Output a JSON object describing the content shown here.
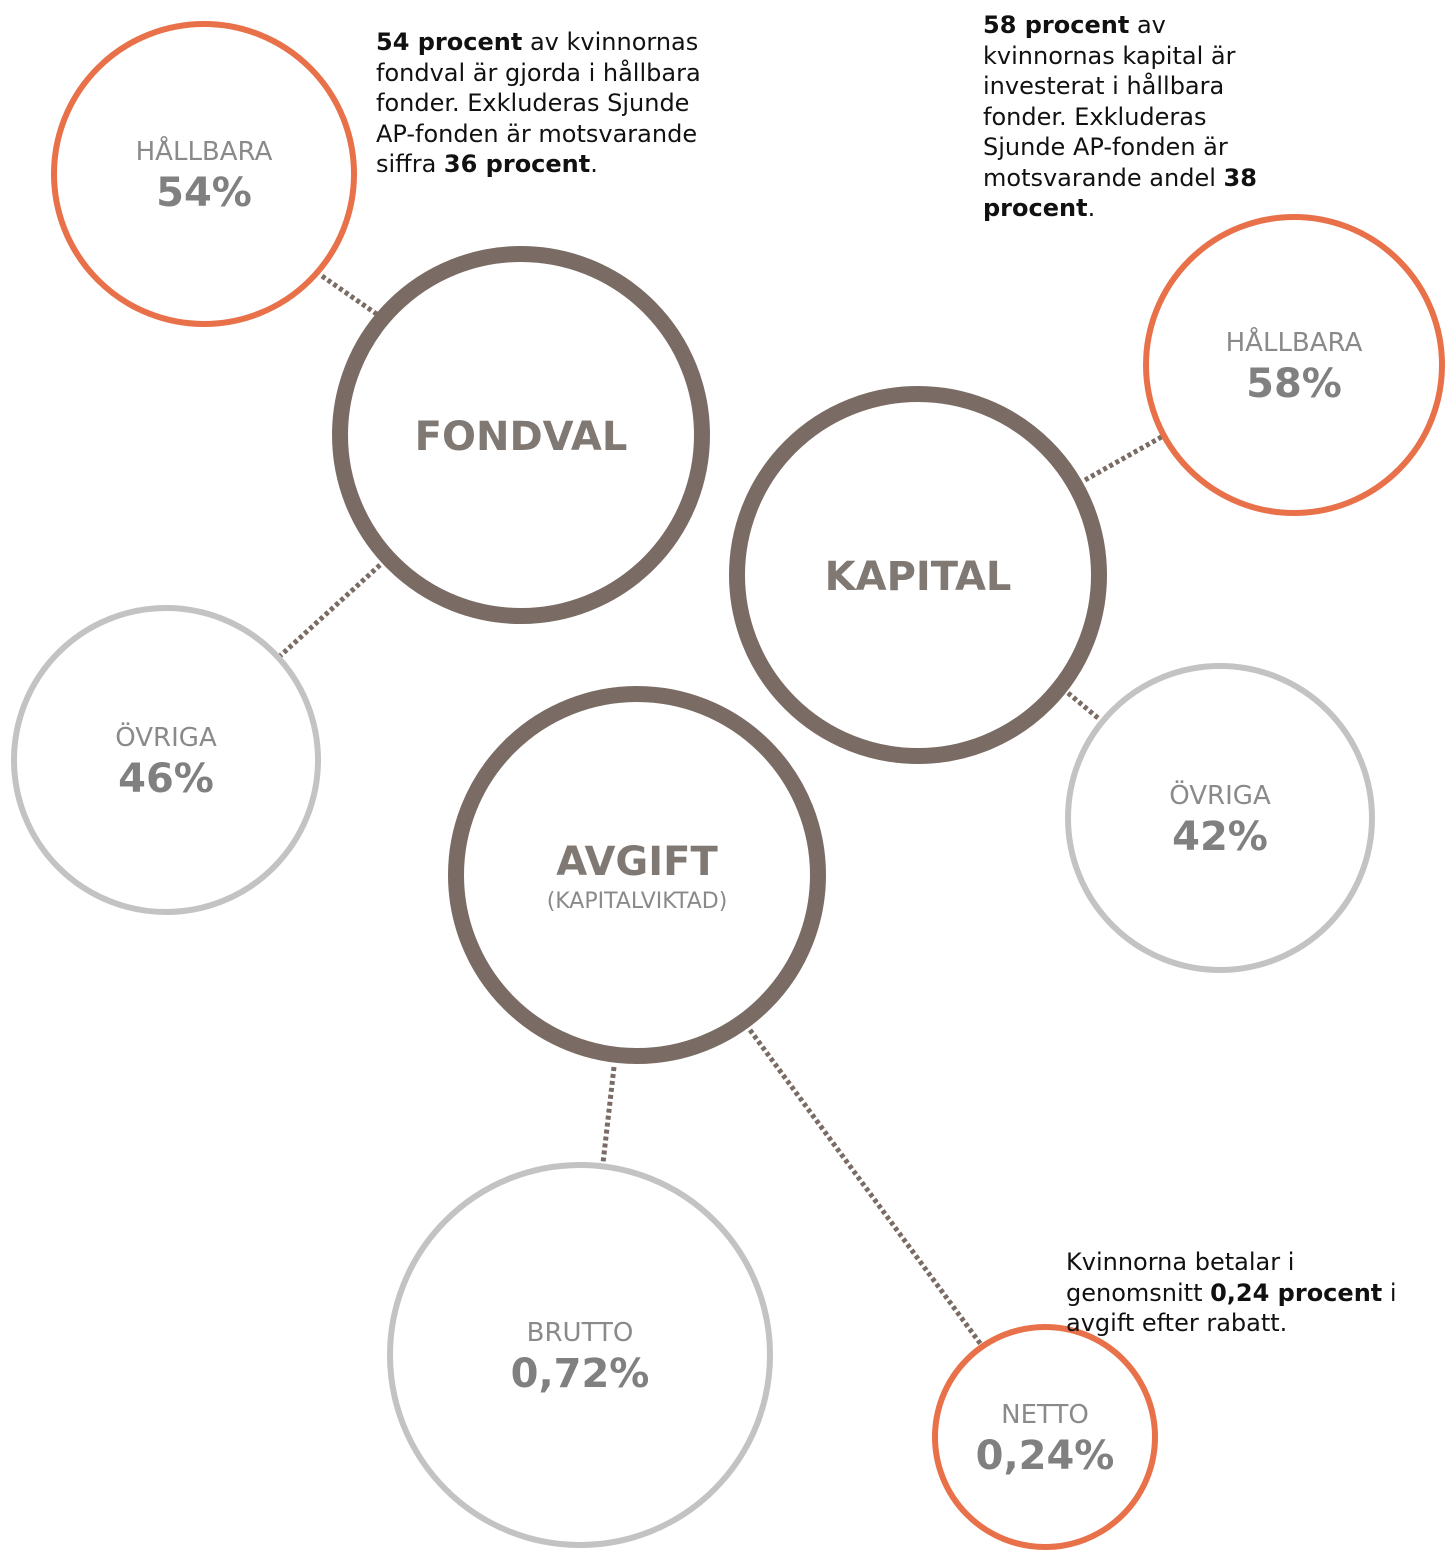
{
  "nodes": [
    {
      "label": "FONDVAL"
    },
    {
      "label": "HÅLLBARA",
      "value": "54%"
    },
    {
      "label": "ÖVRIGA",
      "value": "46%"
    },
    {
      "label": "KAPITAL"
    },
    {
      "label": "HÅLLBARA",
      "value": "58%"
    },
    {
      "label": "ÖVRIGA",
      "value": "42%"
    },
    {
      "label": "AVGIFT",
      "sublabel": "(KAPITALVIKTAD)"
    },
    {
      "label": "BRUTTO",
      "value": "0,72%"
    },
    {
      "label": "NETTO",
      "value": "0,24%"
    }
  ],
  "notes": [
    {
      "parts": [
        {
          "text": "54 procent",
          "bold": true
        },
        {
          "text": " av kvinnornas fondval är gjorda i hållbara fonder. Exkluderas Sjunde AP-fonden är motsvarande siffra "
        },
        {
          "text": "36 procent",
          "bold": true
        },
        {
          "text": "."
        }
      ]
    },
    {
      "parts": [
        {
          "text": "58 procent",
          "bold": true
        },
        {
          "text": " av kvinnornas kapital är investerat i hållbara fonder. Exkluderas Sjunde AP-fonden är motsvarande andel "
        },
        {
          "text": "38 procent",
          "bold": true
        },
        {
          "text": "."
        }
      ]
    },
    {
      "parts": [
        {
          "text": "Kvinnorna betalar i genomsnitt "
        },
        {
          "text": "0,24 procent",
          "bold": true
        },
        {
          "text": " i avgift efter rabatt."
        }
      ]
    }
  ]
}
